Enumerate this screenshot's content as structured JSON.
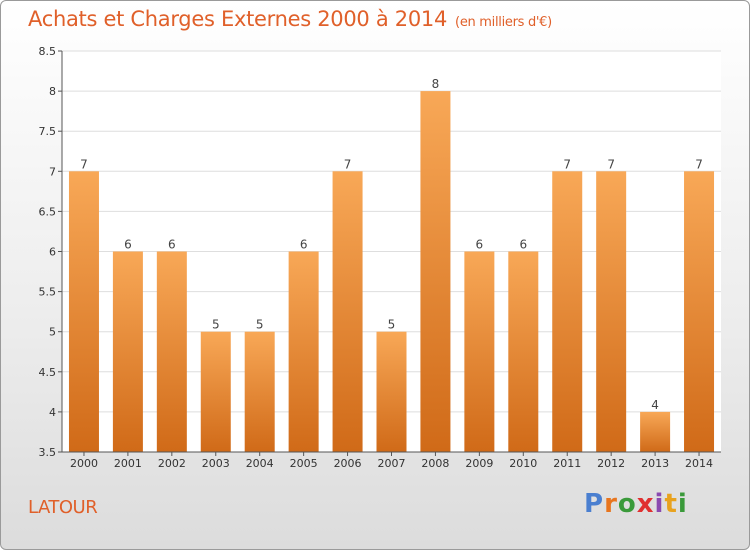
{
  "header": {
    "title": "Achats et Charges Externes 2000 à 2014",
    "unit": "(en milliers d'€)"
  },
  "footer": {
    "commune": "LATOUR",
    "logo_text": "Proxiti"
  },
  "colors": {
    "accent": "#e0602a",
    "bar_top": "#f8a857",
    "bar_bottom": "#d06a18",
    "logo_letters": [
      "#4a7fd0",
      "#e8751e",
      "#3a9a3a",
      "#e03030",
      "#8a4ab0",
      "#e8a21e",
      "#3a9a3a"
    ]
  },
  "chart_data": {
    "type": "bar",
    "title": "Achats et Charges Externes 2000 à 2014",
    "subtitle": "(en milliers d'€)",
    "categories": [
      "2000",
      "2001",
      "2002",
      "2003",
      "2004",
      "2005",
      "2006",
      "2007",
      "2008",
      "2009",
      "2010",
      "2011",
      "2012",
      "2013",
      "2014"
    ],
    "values": [
      7,
      6,
      6,
      5,
      5,
      6,
      7,
      5,
      8,
      6,
      6,
      7,
      7,
      4,
      7
    ],
    "value_labels": [
      "7",
      "6",
      "6",
      "5",
      "5",
      "6",
      "7",
      "5",
      "8",
      "6",
      "6",
      "7",
      "7",
      "4",
      "7"
    ],
    "yticks": [
      "3.5",
      "4",
      "4.5",
      "5",
      "5.5",
      "6",
      "6.5",
      "7",
      "7.5",
      "8",
      "8.5"
    ],
    "ylim": [
      3.5,
      8.5
    ],
    "grid": true,
    "legend": "none"
  }
}
